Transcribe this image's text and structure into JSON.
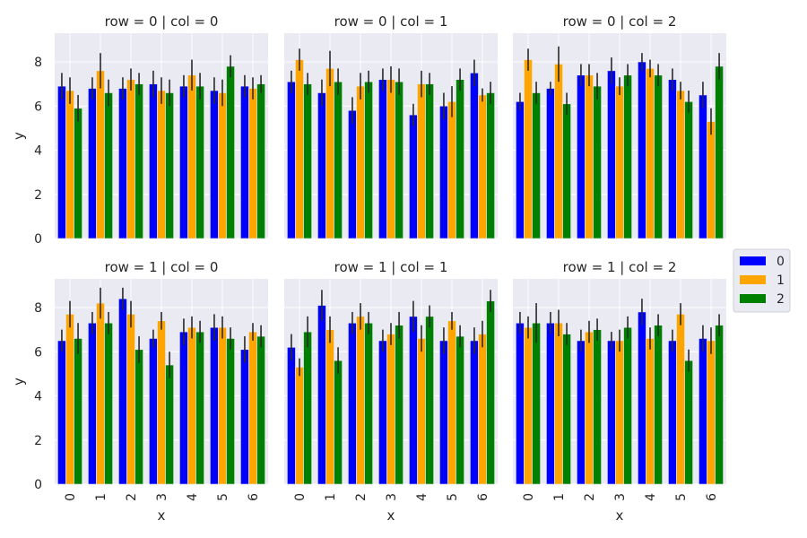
{
  "chart_data": {
    "type": "bar",
    "layout": "facet-grid",
    "facet_rows": 2,
    "facet_cols": 3,
    "categories": [
      "0",
      "1",
      "2",
      "3",
      "4",
      "5",
      "6"
    ],
    "xlabel": "x",
    "ylabel": "y",
    "ylim": [
      0,
      9.3
    ],
    "yticks": [
      0,
      2,
      4,
      6,
      8
    ],
    "grid": true,
    "legend": {
      "placement": "right",
      "entries": [
        "0",
        "1",
        "2"
      ],
      "colors": [
        "#0000ff",
        "#ffa500",
        "#008000"
      ]
    },
    "panels": [
      {
        "title": "row = 0 | col = 0",
        "series": [
          {
            "name": "0",
            "values": [
              6.9,
              6.8,
              6.8,
              7.0,
              6.9,
              6.7,
              6.9
            ],
            "err": [
              0.6,
              0.5,
              0.5,
              0.6,
              0.5,
              0.6,
              0.5
            ]
          },
          {
            "name": "1",
            "values": [
              6.7,
              7.6,
              7.2,
              6.7,
              7.4,
              6.6,
              6.8
            ],
            "err": [
              0.6,
              0.8,
              0.5,
              0.6,
              0.7,
              0.6,
              0.5
            ]
          },
          {
            "name": "2",
            "values": [
              5.9,
              6.6,
              7.0,
              6.6,
              6.9,
              7.8,
              7.0
            ],
            "err": [
              0.6,
              0.6,
              0.5,
              0.6,
              0.6,
              0.5,
              0.4
            ]
          }
        ]
      },
      {
        "title": "row = 0 | col = 1",
        "series": [
          {
            "name": "0",
            "values": [
              7.1,
              6.6,
              5.8,
              7.2,
              5.6,
              6.0,
              7.5
            ],
            "err": [
              0.5,
              0.6,
              0.6,
              0.5,
              0.5,
              0.6,
              0.6
            ]
          },
          {
            "name": "1",
            "values": [
              8.1,
              7.7,
              6.9,
              7.2,
              7.0,
              6.2,
              6.5
            ],
            "err": [
              0.5,
              0.8,
              0.6,
              0.6,
              0.6,
              0.7,
              0.3
            ]
          },
          {
            "name": "2",
            "values": [
              7.0,
              7.1,
              7.1,
              7.1,
              7.0,
              7.2,
              6.6
            ],
            "err": [
              0.5,
              0.6,
              0.5,
              0.6,
              0.5,
              0.5,
              0.5
            ]
          }
        ]
      },
      {
        "title": "row = 0 | col = 2",
        "series": [
          {
            "name": "0",
            "values": [
              6.2,
              6.8,
              7.4,
              7.6,
              8.0,
              7.2,
              6.5
            ],
            "err": [
              0.4,
              0.3,
              0.5,
              0.6,
              0.4,
              0.5,
              0.6
            ]
          },
          {
            "name": "1",
            "values": [
              8.1,
              7.9,
              7.4,
              6.9,
              7.7,
              6.7,
              5.3
            ],
            "err": [
              0.5,
              0.8,
              0.5,
              0.4,
              0.4,
              0.4,
              0.6
            ]
          },
          {
            "name": "2",
            "values": [
              6.6,
              6.1,
              6.9,
              7.4,
              7.4,
              6.2,
              7.8
            ],
            "err": [
              0.5,
              0.5,
              0.6,
              0.5,
              0.5,
              0.5,
              0.6
            ]
          }
        ]
      },
      {
        "title": "row = 1 | col = 0",
        "series": [
          {
            "name": "0",
            "values": [
              6.5,
              7.3,
              8.4,
              6.6,
              6.9,
              7.1,
              6.1
            ],
            "err": [
              0.5,
              0.5,
              0.5,
              0.4,
              0.6,
              0.6,
              0.6
            ]
          },
          {
            "name": "1",
            "values": [
              7.7,
              8.2,
              7.7,
              7.4,
              7.1,
              7.1,
              6.9
            ],
            "err": [
              0.6,
              0.7,
              0.6,
              0.4,
              0.5,
              0.5,
              0.4
            ]
          },
          {
            "name": "2",
            "values": [
              6.6,
              7.3,
              6.1,
              5.4,
              6.9,
              6.6,
              6.7
            ],
            "err": [
              0.7,
              0.5,
              0.6,
              0.6,
              0.5,
              0.5,
              0.5
            ]
          }
        ]
      },
      {
        "title": "row = 1 | col = 1",
        "series": [
          {
            "name": "0",
            "values": [
              6.2,
              8.1,
              7.3,
              6.5,
              7.6,
              6.5,
              6.5
            ],
            "err": [
              0.6,
              0.7,
              0.5,
              0.5,
              0.7,
              0.6,
              0.6
            ]
          },
          {
            "name": "1",
            "values": [
              5.3,
              7.0,
              7.6,
              6.8,
              6.6,
              7.4,
              6.8
            ],
            "err": [
              0.4,
              0.6,
              0.6,
              0.5,
              0.6,
              0.4,
              0.6
            ]
          },
          {
            "name": "2",
            "values": [
              6.9,
              5.6,
              7.3,
              7.2,
              7.6,
              6.7,
              8.3
            ],
            "err": [
              0.7,
              0.6,
              0.5,
              0.6,
              0.5,
              0.5,
              0.5
            ]
          }
        ]
      },
      {
        "title": "row = 1 | col = 2",
        "series": [
          {
            "name": "0",
            "values": [
              7.3,
              7.3,
              6.5,
              6.5,
              7.8,
              6.5,
              6.6
            ],
            "err": [
              0.5,
              0.5,
              0.5,
              0.4,
              0.6,
              0.5,
              0.6
            ]
          },
          {
            "name": "1",
            "values": [
              7.1,
              7.3,
              6.9,
              6.5,
              6.6,
              7.7,
              6.5
            ],
            "err": [
              0.5,
              0.6,
              0.5,
              0.5,
              0.5,
              0.5,
              0.6
            ]
          },
          {
            "name": "2",
            "values": [
              7.3,
              6.8,
              7.0,
              7.1,
              7.2,
              5.6,
              7.2
            ],
            "err": [
              0.9,
              0.5,
              0.5,
              0.5,
              0.5,
              0.5,
              0.5
            ]
          }
        ]
      }
    ]
  }
}
